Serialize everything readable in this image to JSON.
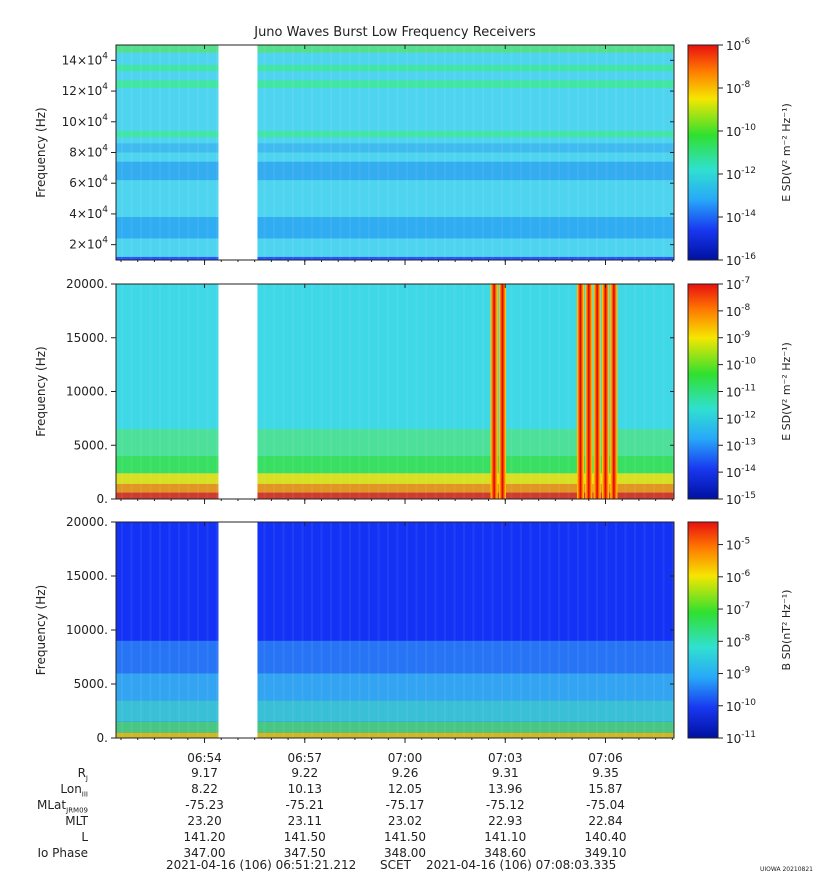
{
  "chart_data": [
    {
      "type": "heatmap",
      "title": "Juno Waves Burst Low Frequency Receivers",
      "ylabel": "Frequency (Hz)",
      "ylim": [
        10000,
        150000
      ],
      "yticks": [
        {
          "value": 20000,
          "mant": "2×10",
          "exp": "4"
        },
        {
          "value": 40000,
          "mant": "4×10",
          "exp": "4"
        },
        {
          "value": 60000,
          "mant": "6×10",
          "exp": "4"
        },
        {
          "value": 80000,
          "mant": "8×10",
          "exp": "4"
        },
        {
          "value": 100000,
          "mant": "10×10",
          "exp": "4"
        },
        {
          "value": 120000,
          "mant": "12×10",
          "exp": "4"
        },
        {
          "value": 140000,
          "mant": "14×10",
          "exp": "4"
        }
      ],
      "colorbar_label": "E SD(V² m⁻² Hz⁻¹)",
      "colorbar_ticks": [
        {
          "value": -6,
          "mant": "10",
          "exp": "-6"
        },
        {
          "value": -8,
          "mant": "10",
          "exp": "-8"
        },
        {
          "value": -10,
          "mant": "10",
          "exp": "-10"
        },
        {
          "value": -12,
          "mant": "10",
          "exp": "-12"
        },
        {
          "value": -14,
          "mant": "10",
          "exp": "-14"
        },
        {
          "value": -16,
          "mant": "10",
          "exp": "-16"
        }
      ],
      "colorbar_range": [
        -16,
        -6
      ],
      "background": "#4fd4f0",
      "bands": [
        {
          "y0": 10000,
          "y1": 12000,
          "color": "#1e40ff"
        },
        {
          "y0": 24000,
          "y1": 38000,
          "color": "#2aa6f2"
        },
        {
          "y0": 62000,
          "y1": 74000,
          "color": "#2fa4f0"
        },
        {
          "y0": 80000,
          "y1": 86000,
          "color": "#3db6f0"
        },
        {
          "y0": 90000,
          "y1": 94000,
          "color": "#3ee896"
        },
        {
          "y0": 122000,
          "y1": 127000,
          "color": "#3ee896"
        },
        {
          "y0": 133000,
          "y1": 137000,
          "color": "#3ee896"
        },
        {
          "y0": 145000,
          "y1": 150000,
          "color": "#55e07a"
        }
      ]
    },
    {
      "type": "heatmap",
      "ylabel": "Frequency (Hz)",
      "ylim": [
        0,
        20000
      ],
      "yticks": [
        {
          "value": 0,
          "label": "0."
        },
        {
          "value": 5000,
          "label": "5000."
        },
        {
          "value": 10000,
          "label": "10000."
        },
        {
          "value": 15000,
          "label": "15000."
        },
        {
          "value": 20000,
          "label": "20000."
        }
      ],
      "colorbar_label": "E SD(V² m⁻² Hz⁻¹)",
      "colorbar_ticks": [
        {
          "value": -7,
          "mant": "10",
          "exp": "-7"
        },
        {
          "value": -8,
          "mant": "10",
          "exp": "-8"
        },
        {
          "value": -9,
          "mant": "10",
          "exp": "-9"
        },
        {
          "value": -10,
          "mant": "10",
          "exp": "-10"
        },
        {
          "value": -11,
          "mant": "10",
          "exp": "-11"
        },
        {
          "value": -12,
          "mant": "10",
          "exp": "-12"
        },
        {
          "value": -13,
          "mant": "10",
          "exp": "-13"
        },
        {
          "value": -14,
          "mant": "10",
          "exp": "-14"
        },
        {
          "value": -15,
          "mant": "10",
          "exp": "-15"
        }
      ],
      "colorbar_range": [
        -15,
        -7
      ],
      "background": "#3fd8e6",
      "bands": [
        {
          "y0": 0,
          "y1": 600,
          "color": "#e82010"
        },
        {
          "y0": 600,
          "y1": 1400,
          "color": "#ff8a00"
        },
        {
          "y0": 1400,
          "y1": 2400,
          "color": "#f5e000"
        },
        {
          "y0": 2400,
          "y1": 4000,
          "color": "#38e04a"
        },
        {
          "y0": 4000,
          "y1": 6500,
          "color": "#4fe28c"
        }
      ],
      "spikes_utc": [
        "07:02:40",
        "07:02:55",
        "07:05:15",
        "07:05:30",
        "07:05:45",
        "07:06:00",
        "07:06:15"
      ]
    },
    {
      "type": "heatmap",
      "ylabel": "Frequency (Hz)",
      "ylim": [
        0,
        20000
      ],
      "yticks": [
        {
          "value": 0,
          "label": "0."
        },
        {
          "value": 5000,
          "label": "5000."
        },
        {
          "value": 10000,
          "label": "10000."
        },
        {
          "value": 15000,
          "label": "15000."
        },
        {
          "value": 20000,
          "label": "20000."
        }
      ],
      "colorbar_label": "B SD(nT² Hz⁻¹)",
      "colorbar_ticks": [
        {
          "value": -5,
          "mant": "10",
          "exp": "-5"
        },
        {
          "value": -6,
          "mant": "10",
          "exp": "-6"
        },
        {
          "value": -7,
          "mant": "10",
          "exp": "-7"
        },
        {
          "value": -8,
          "mant": "10",
          "exp": "-8"
        },
        {
          "value": -9,
          "mant": "10",
          "exp": "-9"
        },
        {
          "value": -10,
          "mant": "10",
          "exp": "-10"
        },
        {
          "value": -11,
          "mant": "10",
          "exp": "-11"
        }
      ],
      "colorbar_range": [
        -11,
        -4.3
      ],
      "background": "#1432f5",
      "bands": [
        {
          "y0": 0,
          "y1": 500,
          "color": "#f0d000"
        },
        {
          "y0": 500,
          "y1": 1500,
          "color": "#50e070"
        },
        {
          "y0": 1500,
          "y1": 3500,
          "color": "#40d8d0"
        },
        {
          "y0": 3500,
          "y1": 6000,
          "color": "#38b8f0"
        },
        {
          "y0": 6000,
          "y1": 9000,
          "color": "#2a80f5"
        }
      ]
    }
  ],
  "time_axis": {
    "start": "06:51:21",
    "end": "07:08:03",
    "ticks": [
      "06:54",
      "06:57",
      "07:00",
      "07:03",
      "07:06"
    ],
    "data_gap": [
      "06:54:25",
      "06:55:35"
    ]
  },
  "ephemeris": {
    "rows": [
      {
        "label": "R",
        "sub": "J",
        "values": [
          "9.17",
          "9.22",
          "9.26",
          "9.31",
          "9.35"
        ]
      },
      {
        "label": "Lon",
        "sub": "III",
        "values": [
          "8.22",
          "10.13",
          "12.05",
          "13.96",
          "15.87"
        ]
      },
      {
        "label": "MLat",
        "sub": "JRM09",
        "values": [
          "-75.23",
          "-75.21",
          "-75.17",
          "-75.12",
          "-75.04"
        ]
      },
      {
        "label": "MLT",
        "sub": "",
        "values": [
          "23.20",
          "23.11",
          "23.02",
          "22.93",
          "22.84"
        ]
      },
      {
        "label": "L",
        "sub": "",
        "values": [
          "141.20",
          "141.50",
          "141.50",
          "141.10",
          "140.40"
        ]
      },
      {
        "label": "Io Phase",
        "sub": "",
        "values": [
          "347.00",
          "347.50",
          "348.00",
          "348.60",
          "349.10"
        ]
      }
    ]
  },
  "footer": {
    "start": "2021-04-16 (106) 06:51:21.212",
    "scet": "SCET",
    "end": "2021-04-16 (106) 07:08:03.335"
  },
  "stamp": "UIOWA 20210821"
}
